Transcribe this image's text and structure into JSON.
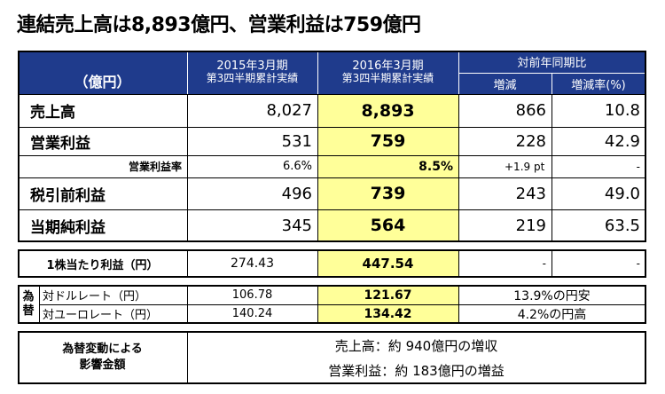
{
  "title": "連結売上高は8,893億円、営業利益は759億円",
  "header": {
    "unit": "（億円）",
    "col_prev_line1": "2015年3月期",
    "col_prev_line2": "第3四半期累計実績",
    "col_curr_line1": "2016年3月期",
    "col_curr_line2": "第3四半期累計実績",
    "yoy": "対前年同期比",
    "diff": "増減",
    "rate": "増減率(%)"
  },
  "rows": [
    {
      "label": "売上高",
      "prev": "8,027",
      "curr": "8,893",
      "diff": "866",
      "rate": "10.8"
    },
    {
      "label": "営業利益",
      "prev": "531",
      "curr": "759",
      "diff": "228",
      "rate": "42.9"
    },
    {
      "label": "営業利益率",
      "prev": "6.6%",
      "curr": "8.5%",
      "diff": "+1.9 pt",
      "rate": "-"
    },
    {
      "label": "税引前利益",
      "prev": "496",
      "curr": "739",
      "diff": "243",
      "rate": "49.0"
    },
    {
      "label": "当期純利益",
      "prev": "345",
      "curr": "564",
      "diff": "219",
      "rate": "63.5"
    }
  ],
  "eps": {
    "label": "1株当たり利益（円）",
    "prev": "274.43",
    "curr": "447.54",
    "diff": "-",
    "rate": "-"
  },
  "fx": {
    "side_label_1": "為",
    "side_label_2": "替",
    "usd": {
      "label": "対ドルレート（円）",
      "prev": "106.78",
      "curr": "121.67",
      "note": "13.9%の円安"
    },
    "eur": {
      "label": "対ユーロレート（円）",
      "prev": "140.24",
      "curr": "134.42",
      "note": "4.2%の円高"
    }
  },
  "impact": {
    "label_line1": "為替変動による",
    "label_line2": "影響金額",
    "sales": "売上高：約 940億円の増収",
    "op": "営業利益：約 183億円の増益"
  },
  "colors": {
    "header_bg": "#1f3b8c",
    "highlight": "#ffff99"
  }
}
